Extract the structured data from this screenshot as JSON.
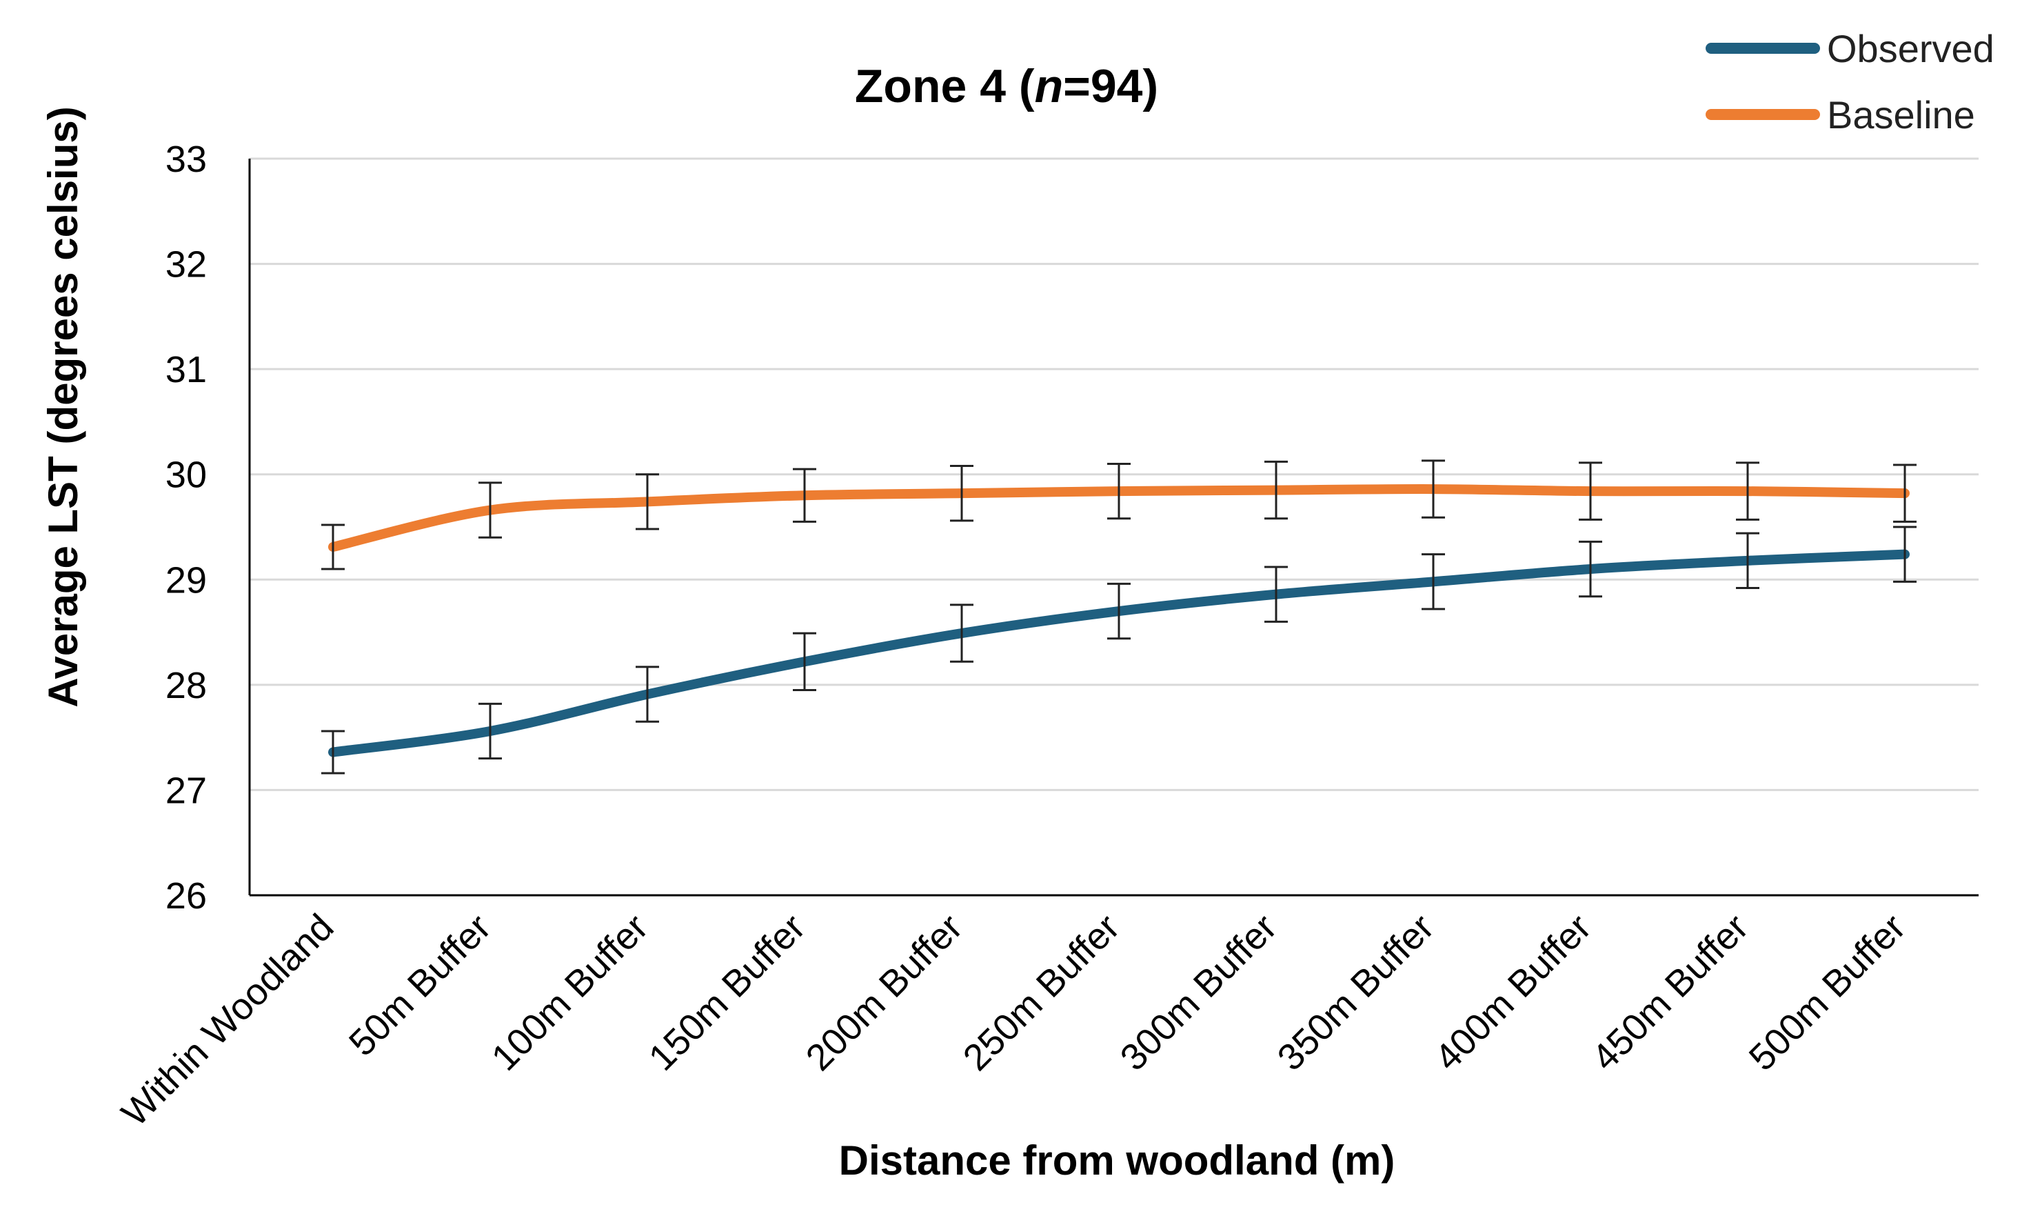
{
  "chart_data": {
    "type": "line",
    "title_prefix": "Zone 4 (",
    "title_italic": "n",
    "title_suffix": "=94)",
    "xlabel": "Distance from woodland (m)",
    "ylabel": "Average LST (degrees celsius)",
    "ylim": [
      26,
      33
    ],
    "yticks": [
      26,
      27,
      28,
      29,
      30,
      31,
      32,
      33
    ],
    "grid": true,
    "legend_position": "top-right",
    "categories": [
      "Within Woodland",
      "50m Buffer",
      "100m Buffer",
      "150m Buffer",
      "200m Buffer",
      "250m Buffer",
      "300m Buffer",
      "350m Buffer",
      "400m Buffer",
      "450m Buffer",
      "500m Buffer"
    ],
    "series": [
      {
        "name": "Observed",
        "color": "#1f5f80",
        "values": [
          27.36,
          27.56,
          27.91,
          28.22,
          28.49,
          28.7,
          28.86,
          28.98,
          29.1,
          29.18,
          29.24
        ],
        "error": [
          0.2,
          0.26,
          0.26,
          0.27,
          0.27,
          0.26,
          0.26,
          0.26,
          0.26,
          0.26,
          0.26
        ]
      },
      {
        "name": "Baseline",
        "color": "#ed7d31",
        "values": [
          29.31,
          29.66,
          29.74,
          29.8,
          29.82,
          29.84,
          29.85,
          29.86,
          29.84,
          29.84,
          29.82
        ],
        "error": [
          0.21,
          0.26,
          0.26,
          0.25,
          0.26,
          0.26,
          0.27,
          0.27,
          0.27,
          0.27,
          0.27
        ]
      }
    ]
  }
}
